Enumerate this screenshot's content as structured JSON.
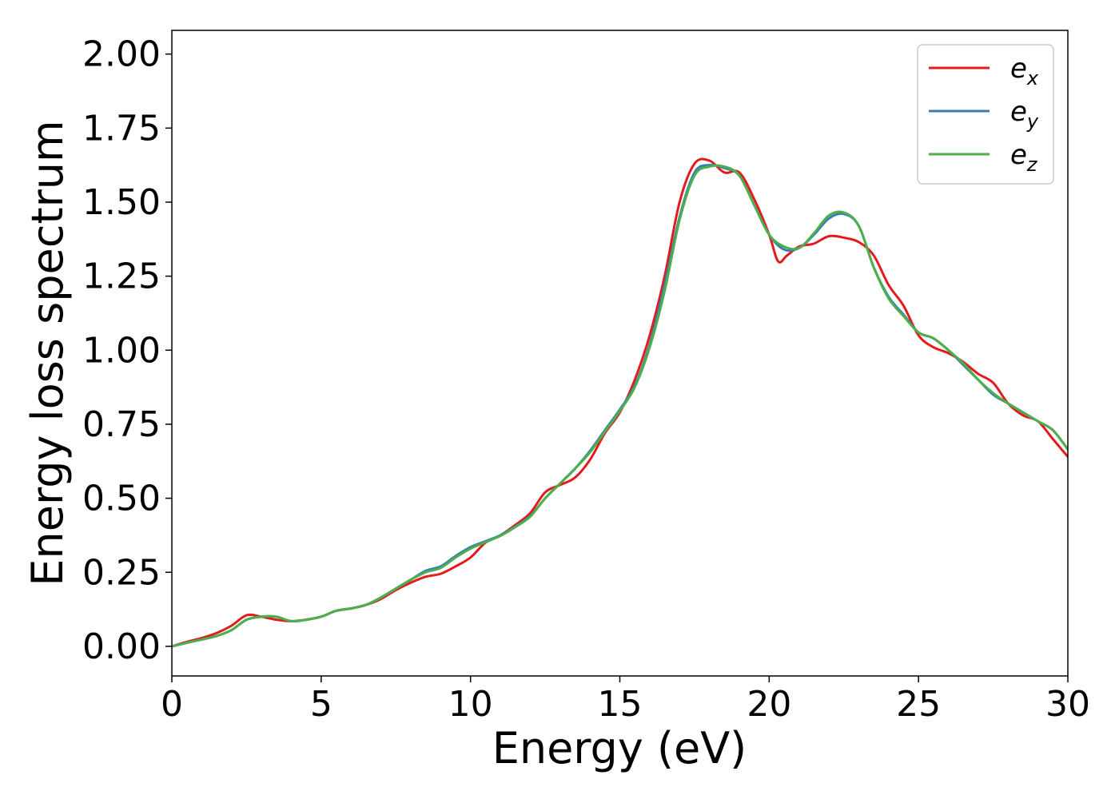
{
  "chart_data": {
    "type": "line",
    "title": "",
    "xlabel": "Energy (eV)",
    "ylabel": "Energy loss spectrum",
    "xlim": [
      0,
      30
    ],
    "ylim": [
      -0.1,
      2.08
    ],
    "xticks": [
      0,
      5,
      10,
      15,
      20,
      25,
      30
    ],
    "xtick_labels": [
      "0",
      "5",
      "10",
      "15",
      "20",
      "25",
      "30"
    ],
    "yticks": [
      0.0,
      0.25,
      0.5,
      0.75,
      1.0,
      1.25,
      1.5,
      1.75,
      2.0
    ],
    "ytick_labels": [
      "0.00",
      "0.25",
      "0.50",
      "0.75",
      "1.00",
      "1.25",
      "1.50",
      "1.75",
      "2.00"
    ],
    "grid": false,
    "legend_position": "top-right",
    "series": [
      {
        "name": "e",
        "subscript": "x",
        "color": "#e41a1c",
        "points": [
          [
            0,
            0.0
          ],
          [
            0.5,
            0.015
          ],
          [
            1.0,
            0.028
          ],
          [
            1.5,
            0.045
          ],
          [
            2.0,
            0.07
          ],
          [
            2.5,
            0.105
          ],
          [
            3.0,
            0.1
          ],
          [
            3.5,
            0.09
          ],
          [
            4.0,
            0.085
          ],
          [
            4.5,
            0.09
          ],
          [
            5.0,
            0.1
          ],
          [
            5.5,
            0.12
          ],
          [
            6.0,
            0.128
          ],
          [
            6.5,
            0.14
          ],
          [
            7.0,
            0.16
          ],
          [
            7.5,
            0.19
          ],
          [
            8.0,
            0.215
          ],
          [
            8.5,
            0.235
          ],
          [
            9.0,
            0.245
          ],
          [
            9.5,
            0.27
          ],
          [
            10.0,
            0.3
          ],
          [
            10.5,
            0.35
          ],
          [
            11.0,
            0.375
          ],
          [
            11.5,
            0.41
          ],
          [
            12.0,
            0.45
          ],
          [
            12.5,
            0.52
          ],
          [
            13.0,
            0.545
          ],
          [
            13.5,
            0.57
          ],
          [
            14.0,
            0.63
          ],
          [
            14.5,
            0.72
          ],
          [
            15.0,
            0.79
          ],
          [
            15.5,
            0.9
          ],
          [
            16.0,
            1.05
          ],
          [
            16.5,
            1.25
          ],
          [
            17.0,
            1.5
          ],
          [
            17.5,
            1.63
          ],
          [
            18.0,
            1.64
          ],
          [
            18.5,
            1.6
          ],
          [
            19.0,
            1.6
          ],
          [
            19.5,
            1.51
          ],
          [
            20.0,
            1.39
          ],
          [
            20.3,
            1.3
          ],
          [
            20.6,
            1.32
          ],
          [
            21.0,
            1.35
          ],
          [
            21.5,
            1.36
          ],
          [
            22.0,
            1.385
          ],
          [
            22.5,
            1.38
          ],
          [
            23.0,
            1.365
          ],
          [
            23.5,
            1.32
          ],
          [
            24.0,
            1.22
          ],
          [
            24.5,
            1.15
          ],
          [
            25.0,
            1.05
          ],
          [
            25.5,
            1.01
          ],
          [
            26.0,
            0.99
          ],
          [
            26.5,
            0.96
          ],
          [
            27.0,
            0.92
          ],
          [
            27.5,
            0.89
          ],
          [
            28.0,
            0.82
          ],
          [
            28.5,
            0.78
          ],
          [
            29.0,
            0.76
          ],
          [
            29.5,
            0.7
          ],
          [
            30.0,
            0.64
          ]
        ]
      },
      {
        "name": "e",
        "subscript": "y",
        "color": "#377eb8",
        "points": [
          [
            0,
            0.0
          ],
          [
            0.5,
            0.012
          ],
          [
            1.0,
            0.023
          ],
          [
            1.5,
            0.035
          ],
          [
            2.0,
            0.055
          ],
          [
            2.5,
            0.09
          ],
          [
            3.0,
            0.1
          ],
          [
            3.5,
            0.1
          ],
          [
            4.0,
            0.085
          ],
          [
            4.5,
            0.09
          ],
          [
            5.0,
            0.1
          ],
          [
            5.5,
            0.12
          ],
          [
            6.0,
            0.128
          ],
          [
            6.5,
            0.14
          ],
          [
            7.0,
            0.165
          ],
          [
            7.5,
            0.195
          ],
          [
            8.0,
            0.225
          ],
          [
            8.5,
            0.255
          ],
          [
            9.0,
            0.27
          ],
          [
            9.5,
            0.305
          ],
          [
            10.0,
            0.335
          ],
          [
            10.5,
            0.355
          ],
          [
            11.0,
            0.375
          ],
          [
            11.5,
            0.405
          ],
          [
            12.0,
            0.44
          ],
          [
            12.5,
            0.5
          ],
          [
            13.0,
            0.55
          ],
          [
            13.5,
            0.6
          ],
          [
            14.0,
            0.66
          ],
          [
            14.5,
            0.73
          ],
          [
            15.0,
            0.8
          ],
          [
            15.5,
            0.88
          ],
          [
            16.0,
            1.02
          ],
          [
            16.5,
            1.22
          ],
          [
            17.0,
            1.45
          ],
          [
            17.5,
            1.6
          ],
          [
            18.0,
            1.625
          ],
          [
            18.5,
            1.615
          ],
          [
            19.0,
            1.59
          ],
          [
            19.5,
            1.49
          ],
          [
            20.0,
            1.39
          ],
          [
            20.5,
            1.34
          ],
          [
            21.0,
            1.345
          ],
          [
            21.5,
            1.39
          ],
          [
            22.0,
            1.445
          ],
          [
            22.5,
            1.46
          ],
          [
            23.0,
            1.42
          ],
          [
            23.5,
            1.28
          ],
          [
            24.0,
            1.18
          ],
          [
            24.5,
            1.12
          ],
          [
            25.0,
            1.06
          ],
          [
            25.5,
            1.04
          ],
          [
            26.0,
            1.0
          ],
          [
            26.5,
            0.95
          ],
          [
            27.0,
            0.9
          ],
          [
            27.5,
            0.85
          ],
          [
            28.0,
            0.82
          ],
          [
            28.5,
            0.79
          ],
          [
            29.0,
            0.76
          ],
          [
            29.5,
            0.73
          ],
          [
            30.0,
            0.665
          ]
        ]
      },
      {
        "name": "e",
        "subscript": "z",
        "color": "#4daf4a",
        "points": [
          [
            0,
            0.0
          ],
          [
            0.5,
            0.012
          ],
          [
            1.0,
            0.023
          ],
          [
            1.5,
            0.035
          ],
          [
            2.0,
            0.055
          ],
          [
            2.5,
            0.09
          ],
          [
            3.0,
            0.1
          ],
          [
            3.5,
            0.1
          ],
          [
            4.0,
            0.085
          ],
          [
            4.5,
            0.09
          ],
          [
            5.0,
            0.1
          ],
          [
            5.5,
            0.12
          ],
          [
            6.0,
            0.128
          ],
          [
            6.5,
            0.14
          ],
          [
            7.0,
            0.165
          ],
          [
            7.5,
            0.195
          ],
          [
            8.0,
            0.225
          ],
          [
            8.5,
            0.25
          ],
          [
            9.0,
            0.265
          ],
          [
            9.5,
            0.3
          ],
          [
            10.0,
            0.33
          ],
          [
            10.5,
            0.352
          ],
          [
            11.0,
            0.373
          ],
          [
            11.5,
            0.403
          ],
          [
            12.0,
            0.438
          ],
          [
            12.5,
            0.5
          ],
          [
            13.0,
            0.55
          ],
          [
            13.5,
            0.6
          ],
          [
            14.0,
            0.655
          ],
          [
            14.5,
            0.725
          ],
          [
            15.0,
            0.795
          ],
          [
            15.5,
            0.875
          ],
          [
            16.0,
            1.01
          ],
          [
            16.5,
            1.2
          ],
          [
            17.0,
            1.44
          ],
          [
            17.5,
            1.59
          ],
          [
            18.0,
            1.62
          ],
          [
            18.5,
            1.62
          ],
          [
            19.0,
            1.59
          ],
          [
            19.5,
            1.49
          ],
          [
            20.0,
            1.39
          ],
          [
            20.5,
            1.35
          ],
          [
            21.0,
            1.345
          ],
          [
            21.5,
            1.395
          ],
          [
            22.0,
            1.455
          ],
          [
            22.5,
            1.465
          ],
          [
            23.0,
            1.42
          ],
          [
            23.5,
            1.28
          ],
          [
            24.0,
            1.175
          ],
          [
            24.5,
            1.115
          ],
          [
            25.0,
            1.06
          ],
          [
            25.5,
            1.04
          ],
          [
            26.0,
            1.0
          ],
          [
            26.5,
            0.955
          ],
          [
            27.0,
            0.9
          ],
          [
            27.5,
            0.855
          ],
          [
            28.0,
            0.82
          ],
          [
            28.5,
            0.79
          ],
          [
            29.0,
            0.76
          ],
          [
            29.5,
            0.73
          ],
          [
            30.0,
            0.665
          ]
        ]
      }
    ]
  }
}
